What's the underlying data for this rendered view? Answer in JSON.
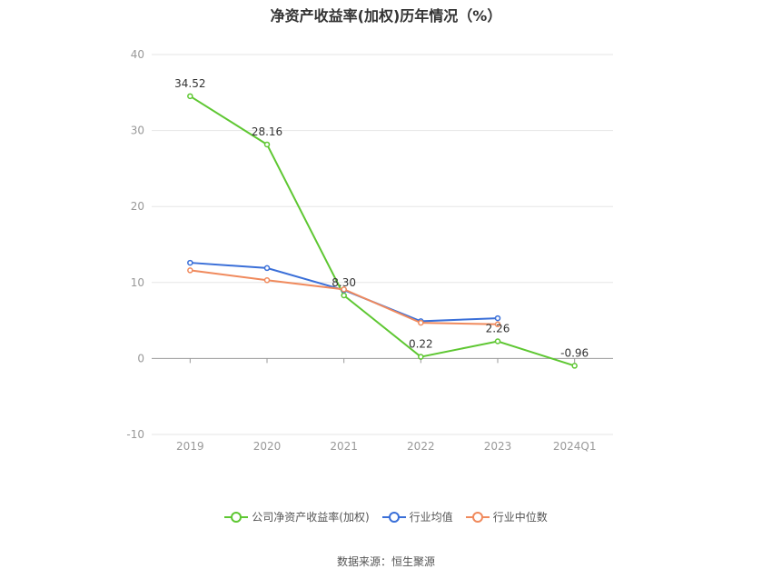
{
  "chart_data": {
    "type": "line",
    "title": "净资产收益率(加权)历年情况（%）",
    "categories": [
      "2019",
      "2020",
      "2021",
      "2022",
      "2023",
      "2024Q1"
    ],
    "ylim": [
      -10,
      40
    ],
    "yticks": [
      -10,
      0,
      10,
      20,
      30,
      40
    ],
    "grid": true,
    "legend_position": "bottom",
    "series": [
      {
        "name": "公司净资产收益率(加权)",
        "color": "#5ec732",
        "values": [
          34.52,
          28.16,
          8.3,
          0.22,
          2.26,
          -0.96
        ],
        "labels": [
          "34.52",
          "28.16",
          "8.30",
          "0.22",
          "2.26",
          "-0.96"
        ]
      },
      {
        "name": "行业均值",
        "color": "#3a6fd8",
        "values": [
          12.6,
          11.9,
          9.0,
          4.9,
          5.3,
          null
        ]
      },
      {
        "name": "行业中位数",
        "color": "#f08a5d",
        "values": [
          11.6,
          10.3,
          9.1,
          4.7,
          4.5,
          null
        ]
      }
    ]
  },
  "footer": {
    "source": "数据来源：恒生聚源"
  }
}
